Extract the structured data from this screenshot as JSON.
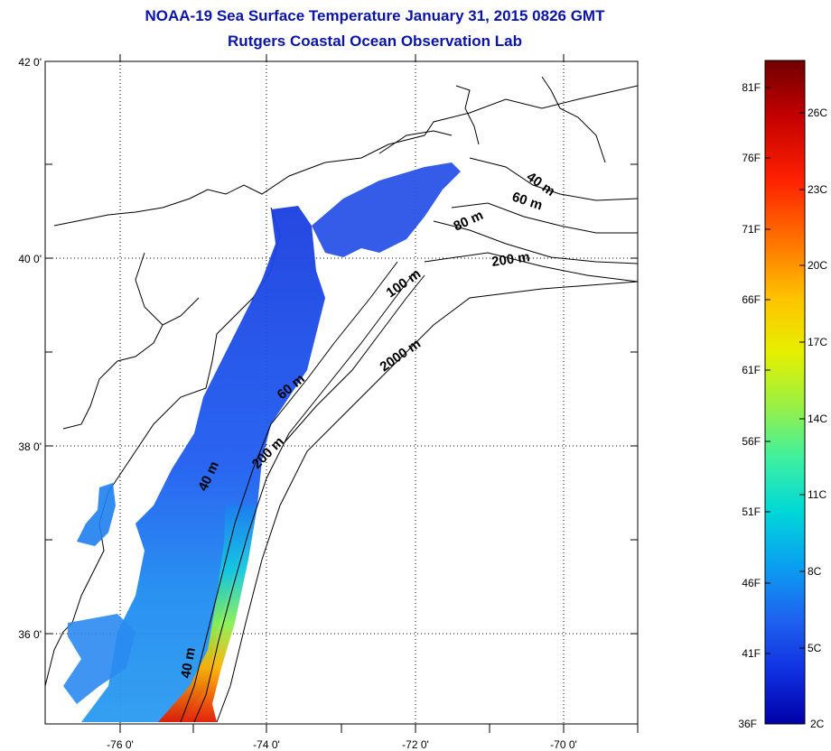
{
  "title": {
    "line1": "NOAA-19 Sea Surface Temperature January 31, 2015 0826 GMT",
    "line2": "Rutgers Coastal Ocean Observation Lab"
  },
  "map": {
    "lat_labels": [
      "42 0'",
      "40 0'",
      "38 0'",
      "36 0'"
    ],
    "lon_labels": [
      "-76 0'",
      "-74 0'",
      "-72 0'",
      "-70 0'"
    ],
    "contour_labels": [
      "40 m",
      "60 m",
      "80 m",
      "200 m",
      "100 m",
      "2000 m",
      "60 m",
      "200 m",
      "40 m",
      "40 m"
    ],
    "grid": "dotted"
  },
  "colorbar": {
    "fahrenheit_labels": [
      "81F",
      "76F",
      "71F",
      "66F",
      "61F",
      "56F",
      "51F",
      "46F",
      "41F",
      "36F"
    ],
    "celsius_labels": [
      "26C",
      "23C",
      "20C",
      "17C",
      "14C",
      "11C",
      "8C",
      "5C",
      "2C"
    ],
    "colors": [
      "#700000",
      "#c00000",
      "#ff2000",
      "#ff7a00",
      "#ffc400",
      "#e6f000",
      "#9af044",
      "#3ef0a0",
      "#00d8d8",
      "#0aa0f0",
      "#1e64f0",
      "#1030e0",
      "#0000a8"
    ]
  }
}
